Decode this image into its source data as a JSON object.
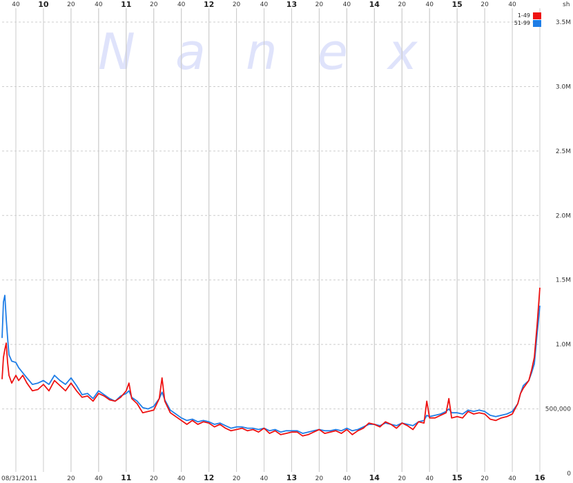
{
  "chart_data": {
    "type": "line",
    "watermark": "Nanex",
    "date_label": "08/31/2011",
    "unit_label": "sh",
    "x_range": [
      "09:30",
      "16:00"
    ],
    "x_top_ticks": [
      {
        "t": "09:40",
        "label": "40",
        "major": false
      },
      {
        "t": "10:00",
        "label": "10",
        "major": true
      },
      {
        "t": "10:20",
        "label": "20",
        "major": false
      },
      {
        "t": "10:40",
        "label": "40",
        "major": false
      },
      {
        "t": "11:00",
        "label": "11",
        "major": true
      },
      {
        "t": "11:20",
        "label": "20",
        "major": false
      },
      {
        "t": "11:40",
        "label": "40",
        "major": false
      },
      {
        "t": "12:00",
        "label": "12",
        "major": true
      },
      {
        "t": "12:20",
        "label": "20",
        "major": false
      },
      {
        "t": "12:40",
        "label": "40",
        "major": false
      },
      {
        "t": "13:00",
        "label": "13",
        "major": true
      },
      {
        "t": "13:20",
        "label": "20",
        "major": false
      },
      {
        "t": "13:40",
        "label": "40",
        "major": false
      },
      {
        "t": "14:00",
        "label": "14",
        "major": true
      },
      {
        "t": "14:20",
        "label": "20",
        "major": false
      },
      {
        "t": "14:40",
        "label": "40",
        "major": false
      },
      {
        "t": "15:00",
        "label": "15",
        "major": true
      },
      {
        "t": "15:20",
        "label": "20",
        "major": false
      },
      {
        "t": "15:40",
        "label": "40",
        "major": false
      }
    ],
    "x_bottom_ticks": [
      {
        "t": "10:20",
        "label": "20",
        "major": false
      },
      {
        "t": "10:40",
        "label": "40",
        "major": false
      },
      {
        "t": "11:00",
        "label": "11",
        "major": true
      },
      {
        "t": "11:20",
        "label": "20",
        "major": false
      },
      {
        "t": "11:40",
        "label": "40",
        "major": false
      },
      {
        "t": "12:00",
        "label": "12",
        "major": true
      },
      {
        "t": "12:20",
        "label": "20",
        "major": false
      },
      {
        "t": "12:40",
        "label": "40",
        "major": false
      },
      {
        "t": "13:00",
        "label": "13",
        "major": true
      },
      {
        "t": "13:20",
        "label": "20",
        "major": false
      },
      {
        "t": "13:40",
        "label": "40",
        "major": false
      },
      {
        "t": "14:00",
        "label": "14",
        "major": true
      },
      {
        "t": "14:20",
        "label": "20",
        "major": false
      },
      {
        "t": "14:40",
        "label": "40",
        "major": false
      },
      {
        "t": "15:00",
        "label": "15",
        "major": true
      },
      {
        "t": "15:20",
        "label": "20",
        "major": false
      },
      {
        "t": "15:40",
        "label": "40",
        "major": false
      },
      {
        "t": "16:00",
        "label": "16",
        "major": true
      }
    ],
    "y_ticks": [
      {
        "v": 0,
        "label": "0"
      },
      {
        "v": 500000,
        "label": "500,000"
      },
      {
        "v": 1000000,
        "label": "1.0M"
      },
      {
        "v": 1500000,
        "label": "1.5M"
      },
      {
        "v": 2000000,
        "label": "2.0M"
      },
      {
        "v": 2500000,
        "label": "2.5M"
      },
      {
        "v": 3000000,
        "label": "3.0M"
      },
      {
        "v": 3500000,
        "label": "3.5M"
      }
    ],
    "ylim": [
      0,
      3650000
    ],
    "grid": true,
    "legend_placement": "top-right",
    "colors": {
      "grid": "#cccccc",
      "watermark": "#dfe3fb"
    },
    "series": [
      {
        "name": "1-49",
        "color": "#ee1111",
        "points": [
          [
            "09:30",
            730000
          ],
          [
            "09:31",
            900000
          ],
          [
            "09:32",
            960000
          ],
          [
            "09:33",
            1010000
          ],
          [
            "09:34",
            860000
          ],
          [
            "09:35",
            760000
          ],
          [
            "09:37",
            700000
          ],
          [
            "09:40",
            760000
          ],
          [
            "09:42",
            720000
          ],
          [
            "09:45",
            760000
          ],
          [
            "09:48",
            700000
          ],
          [
            "09:52",
            640000
          ],
          [
            "09:56",
            650000
          ],
          [
            "10:00",
            690000
          ],
          [
            "10:04",
            640000
          ],
          [
            "10:08",
            720000
          ],
          [
            "10:12",
            680000
          ],
          [
            "10:16",
            640000
          ],
          [
            "10:20",
            700000
          ],
          [
            "10:24",
            640000
          ],
          [
            "10:28",
            590000
          ],
          [
            "10:32",
            600000
          ],
          [
            "10:36",
            560000
          ],
          [
            "10:40",
            620000
          ],
          [
            "10:44",
            600000
          ],
          [
            "10:48",
            570000
          ],
          [
            "10:52",
            560000
          ],
          [
            "10:56",
            590000
          ],
          [
            "11:00",
            640000
          ],
          [
            "11:02",
            700000
          ],
          [
            "11:04",
            580000
          ],
          [
            "11:08",
            540000
          ],
          [
            "11:12",
            470000
          ],
          [
            "11:16",
            480000
          ],
          [
            "11:20",
            490000
          ],
          [
            "11:24",
            580000
          ],
          [
            "11:26",
            740000
          ],
          [
            "11:28",
            560000
          ],
          [
            "11:32",
            470000
          ],
          [
            "11:36",
            440000
          ],
          [
            "11:40",
            410000
          ],
          [
            "11:44",
            380000
          ],
          [
            "11:48",
            410000
          ],
          [
            "11:52",
            380000
          ],
          [
            "11:56",
            400000
          ],
          [
            "12:00",
            390000
          ],
          [
            "12:04",
            360000
          ],
          [
            "12:08",
            380000
          ],
          [
            "12:12",
            350000
          ],
          [
            "12:16",
            330000
          ],
          [
            "12:20",
            340000
          ],
          [
            "12:24",
            350000
          ],
          [
            "12:28",
            330000
          ],
          [
            "12:32",
            340000
          ],
          [
            "12:36",
            320000
          ],
          [
            "12:40",
            350000
          ],
          [
            "12:44",
            310000
          ],
          [
            "12:48",
            330000
          ],
          [
            "12:52",
            300000
          ],
          [
            "12:56",
            310000
          ],
          [
            "13:00",
            320000
          ],
          [
            "13:04",
            320000
          ],
          [
            "13:08",
            290000
          ],
          [
            "13:12",
            300000
          ],
          [
            "13:16",
            320000
          ],
          [
            "13:20",
            340000
          ],
          [
            "13:24",
            310000
          ],
          [
            "13:28",
            320000
          ],
          [
            "13:32",
            330000
          ],
          [
            "13:36",
            310000
          ],
          [
            "13:40",
            340000
          ],
          [
            "13:44",
            300000
          ],
          [
            "13:48",
            330000
          ],
          [
            "13:52",
            350000
          ],
          [
            "13:56",
            390000
          ],
          [
            "14:00",
            380000
          ],
          [
            "14:04",
            360000
          ],
          [
            "14:08",
            400000
          ],
          [
            "14:12",
            380000
          ],
          [
            "14:16",
            350000
          ],
          [
            "14:20",
            390000
          ],
          [
            "14:24",
            370000
          ],
          [
            "14:28",
            340000
          ],
          [
            "14:32",
            400000
          ],
          [
            "14:36",
            390000
          ],
          [
            "14:38",
            560000
          ],
          [
            "14:40",
            430000
          ],
          [
            "14:44",
            430000
          ],
          [
            "14:48",
            450000
          ],
          [
            "14:52",
            470000
          ],
          [
            "14:54",
            580000
          ],
          [
            "14:56",
            430000
          ],
          [
            "15:00",
            440000
          ],
          [
            "15:04",
            430000
          ],
          [
            "15:08",
            480000
          ],
          [
            "15:12",
            460000
          ],
          [
            "15:16",
            470000
          ],
          [
            "15:20",
            460000
          ],
          [
            "15:24",
            420000
          ],
          [
            "15:28",
            410000
          ],
          [
            "15:32",
            430000
          ],
          [
            "15:36",
            440000
          ],
          [
            "15:40",
            460000
          ],
          [
            "15:44",
            540000
          ],
          [
            "15:46",
            620000
          ],
          [
            "15:48",
            660000
          ],
          [
            "15:50",
            690000
          ],
          [
            "15:52",
            720000
          ],
          [
            "15:54",
            800000
          ],
          [
            "15:56",
            900000
          ],
          [
            "15:58",
            1150000
          ],
          [
            "16:00",
            1440000
          ]
        ]
      },
      {
        "name": "51-99",
        "color": "#1e7de6",
        "points": [
          [
            "09:30",
            1050000
          ],
          [
            "09:31",
            1330000
          ],
          [
            "09:32",
            1380000
          ],
          [
            "09:33",
            1200000
          ],
          [
            "09:34",
            1050000
          ],
          [
            "09:35",
            920000
          ],
          [
            "09:37",
            870000
          ],
          [
            "09:40",
            860000
          ],
          [
            "09:42",
            820000
          ],
          [
            "09:45",
            780000
          ],
          [
            "09:48",
            740000
          ],
          [
            "09:52",
            690000
          ],
          [
            "09:56",
            700000
          ],
          [
            "10:00",
            720000
          ],
          [
            "10:04",
            690000
          ],
          [
            "10:08",
            760000
          ],
          [
            "10:12",
            720000
          ],
          [
            "10:16",
            690000
          ],
          [
            "10:20",
            740000
          ],
          [
            "10:24",
            680000
          ],
          [
            "10:28",
            610000
          ],
          [
            "10:32",
            620000
          ],
          [
            "10:36",
            580000
          ],
          [
            "10:40",
            640000
          ],
          [
            "10:44",
            610000
          ],
          [
            "10:48",
            580000
          ],
          [
            "10:52",
            560000
          ],
          [
            "10:56",
            600000
          ],
          [
            "11:00",
            620000
          ],
          [
            "11:02",
            640000
          ],
          [
            "11:04",
            590000
          ],
          [
            "11:08",
            560000
          ],
          [
            "11:12",
            510000
          ],
          [
            "11:16",
            500000
          ],
          [
            "11:20",
            520000
          ],
          [
            "11:24",
            580000
          ],
          [
            "11:26",
            630000
          ],
          [
            "11:28",
            570000
          ],
          [
            "11:32",
            490000
          ],
          [
            "11:36",
            460000
          ],
          [
            "11:40",
            430000
          ],
          [
            "11:44",
            410000
          ],
          [
            "11:48",
            420000
          ],
          [
            "11:52",
            400000
          ],
          [
            "11:56",
            410000
          ],
          [
            "12:00",
            400000
          ],
          [
            "12:04",
            380000
          ],
          [
            "12:08",
            390000
          ],
          [
            "12:12",
            370000
          ],
          [
            "12:16",
            350000
          ],
          [
            "12:20",
            360000
          ],
          [
            "12:24",
            360000
          ],
          [
            "12:28",
            350000
          ],
          [
            "12:32",
            350000
          ],
          [
            "12:36",
            340000
          ],
          [
            "12:40",
            350000
          ],
          [
            "12:44",
            330000
          ],
          [
            "12:48",
            340000
          ],
          [
            "12:52",
            320000
          ],
          [
            "12:56",
            330000
          ],
          [
            "13:00",
            330000
          ],
          [
            "13:04",
            330000
          ],
          [
            "13:08",
            310000
          ],
          [
            "13:12",
            320000
          ],
          [
            "13:16",
            330000
          ],
          [
            "13:20",
            340000
          ],
          [
            "13:24",
            330000
          ],
          [
            "13:28",
            330000
          ],
          [
            "13:32",
            340000
          ],
          [
            "13:36",
            330000
          ],
          [
            "13:40",
            350000
          ],
          [
            "13:44",
            330000
          ],
          [
            "13:48",
            340000
          ],
          [
            "13:52",
            360000
          ],
          [
            "13:56",
            380000
          ],
          [
            "14:00",
            380000
          ],
          [
            "14:04",
            370000
          ],
          [
            "14:08",
            390000
          ],
          [
            "14:12",
            380000
          ],
          [
            "14:16",
            370000
          ],
          [
            "14:20",
            390000
          ],
          [
            "14:24",
            380000
          ],
          [
            "14:28",
            370000
          ],
          [
            "14:32",
            400000
          ],
          [
            "14:36",
            410000
          ],
          [
            "14:38",
            450000
          ],
          [
            "14:40",
            440000
          ],
          [
            "14:44",
            450000
          ],
          [
            "14:48",
            460000
          ],
          [
            "14:52",
            480000
          ],
          [
            "14:54",
            500000
          ],
          [
            "14:56",
            470000
          ],
          [
            "15:00",
            470000
          ],
          [
            "15:04",
            460000
          ],
          [
            "15:08",
            490000
          ],
          [
            "15:12",
            480000
          ],
          [
            "15:16",
            490000
          ],
          [
            "15:20",
            480000
          ],
          [
            "15:24",
            450000
          ],
          [
            "15:28",
            440000
          ],
          [
            "15:32",
            450000
          ],
          [
            "15:36",
            460000
          ],
          [
            "15:40",
            480000
          ],
          [
            "15:44",
            540000
          ],
          [
            "15:46",
            620000
          ],
          [
            "15:48",
            680000
          ],
          [
            "15:50",
            700000
          ],
          [
            "15:52",
            720000
          ],
          [
            "15:54",
            780000
          ],
          [
            "15:56",
            850000
          ],
          [
            "15:58",
            1080000
          ],
          [
            "16:00",
            1300000
          ]
        ]
      }
    ]
  }
}
